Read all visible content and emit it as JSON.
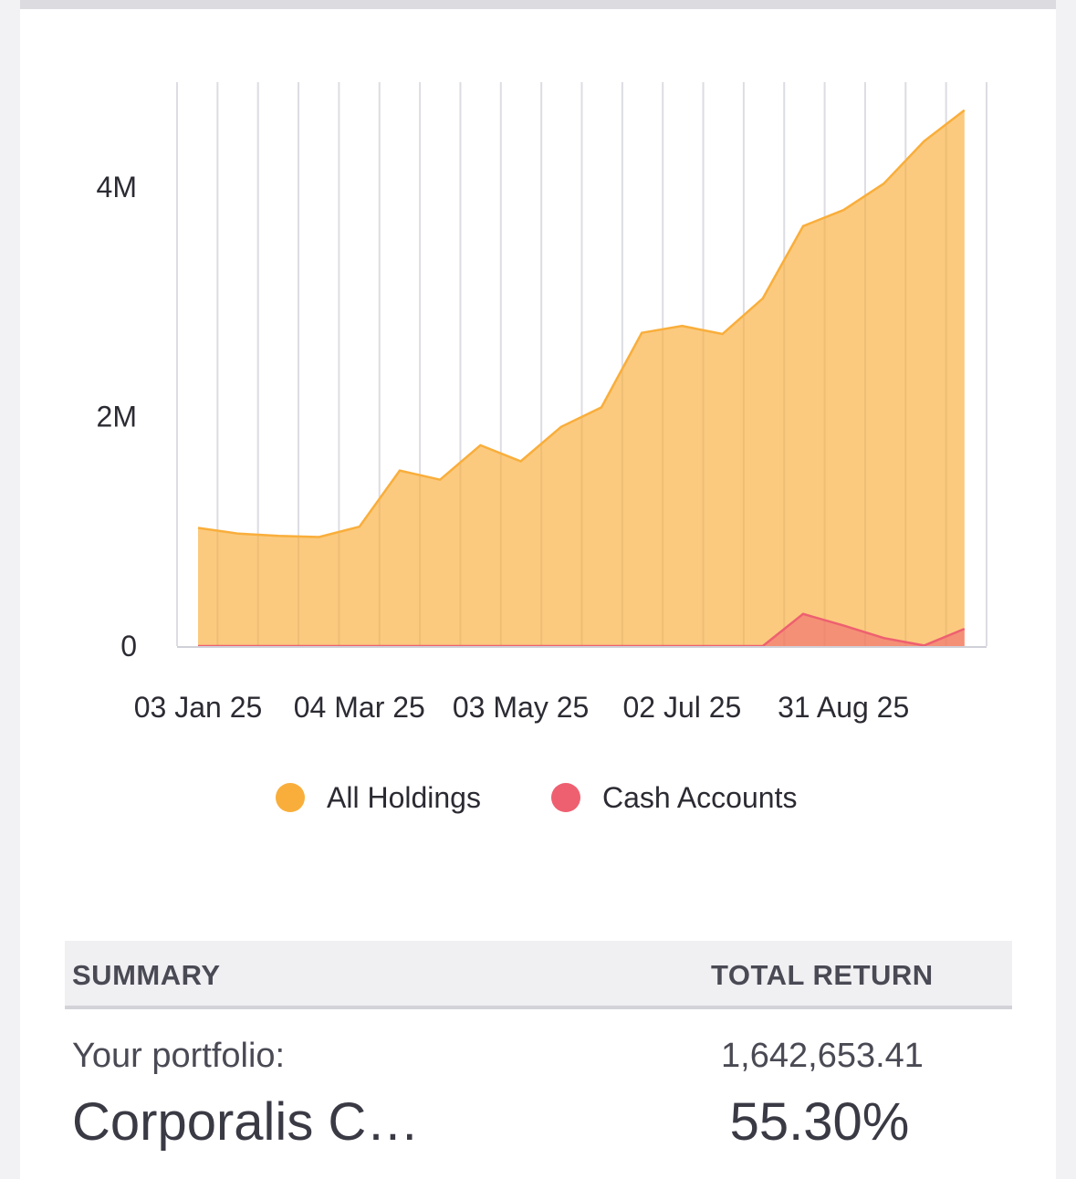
{
  "chart_data": {
    "type": "area",
    "x": [
      "03 Jan 25",
      "18 Jan 25",
      "02 Feb 25",
      "17 Feb 25",
      "04 Mar 25",
      "19 Mar 25",
      "03 Apr 25",
      "18 Apr 25",
      "03 May 25",
      "18 May 25",
      "02 Jun 25",
      "17 Jun 25",
      "02 Jul 25",
      "17 Jul 25",
      "01 Aug 25",
      "16 Aug 25",
      "31 Aug 25",
      "15 Sep 25",
      "30 Sep 25",
      "15 Oct 25"
    ],
    "x_tick_labels": [
      "03 Jan 25",
      "04 Mar 25",
      "03 May 25",
      "02 Jul 25",
      "31 Aug 25"
    ],
    "y_tick_labels": [
      "0",
      "2M",
      "4M"
    ],
    "ylim": [
      0,
      4900000
    ],
    "series": [
      {
        "name": "All Holdings",
        "color": "#f9ae3b",
        "values": [
          1030000,
          980000,
          960000,
          950000,
          1040000,
          1530000,
          1450000,
          1750000,
          1610000,
          1910000,
          2080000,
          2730000,
          2790000,
          2720000,
          3030000,
          3660000,
          3800000,
          4030000,
          4400000,
          4670000
        ]
      },
      {
        "name": "Cash Accounts",
        "color": "#ee6070",
        "values": [
          0,
          0,
          0,
          0,
          0,
          0,
          0,
          0,
          0,
          0,
          0,
          0,
          0,
          0,
          0,
          280000,
          180000,
          70000,
          5000,
          150000
        ]
      }
    ],
    "title": "",
    "xlabel": "",
    "ylabel": "",
    "legend": "bottom"
  },
  "summary": {
    "header_label": "SUMMARY",
    "header_return": "TOTAL RETURN",
    "portfolio_label": "Your portfolio:",
    "portfolio_value": "1,642,653.41",
    "portfolio_name": "Corporalis C…",
    "portfolio_pct": "55.30%"
  }
}
